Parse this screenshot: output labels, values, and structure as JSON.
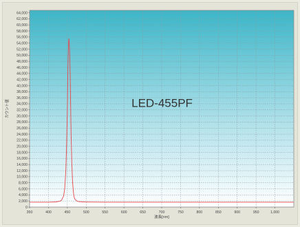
{
  "chart_data": {
    "type": "line",
    "xlabel": "波長[nm]",
    "ylabel": "カウント値",
    "annotation": "LED-455PF",
    "xlim": [
      350,
      1050
    ],
    "ylim": [
      0,
      64800
    ],
    "x_ticks": [
      "350",
      "400",
      "450",
      "500",
      "550",
      "600",
      "650",
      "700",
      "750",
      "800",
      "850",
      "900",
      "950",
      "1,000"
    ],
    "y_ticks": [
      "0",
      "2,000",
      "4,000",
      "6,000",
      "8,000",
      "10,000",
      "12,000",
      "14,000",
      "16,000",
      "18,000",
      "20,000",
      "22,000",
      "24,000",
      "26,000",
      "28,000",
      "30,000",
      "32,000",
      "34,000",
      "36,000",
      "38,000",
      "40,000",
      "42,000",
      "44,000",
      "46,000",
      "48,000",
      "50,000",
      "52,000",
      "54,000",
      "56,000",
      "58,000",
      "60,000",
      "62,000",
      "64,000"
    ],
    "grid": true,
    "background": [
      "#ffffff",
      "#3cb6c8"
    ],
    "series": [
      {
        "color": "#e8484c",
        "x": [
          350,
          400,
          420,
          430,
          435,
          440,
          443,
          446,
          448,
          450,
          451,
          452,
          453,
          454,
          455,
          456,
          457,
          458,
          459,
          460,
          462,
          464,
          466,
          468,
          470,
          475,
          480,
          490,
          500,
          550,
          600,
          700,
          800,
          900,
          1000,
          1050
        ],
        "y": [
          1600,
          1600,
          1700,
          1900,
          2300,
          3600,
          6000,
          12000,
          20000,
          32000,
          41000,
          48000,
          53000,
          55500,
          54500,
          52000,
          47000,
          40000,
          32000,
          24000,
          14000,
          8000,
          5000,
          3300,
          2600,
          2000,
          1800,
          1700,
          1650,
          1600,
          1600,
          1600,
          1600,
          1600,
          1600,
          1600
        ]
      }
    ]
  }
}
